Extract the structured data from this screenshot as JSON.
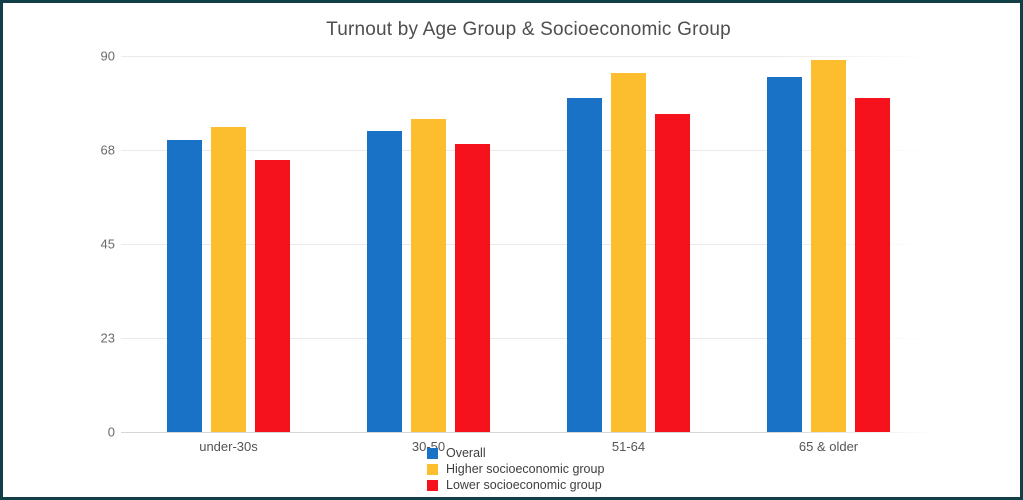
{
  "window": {
    "border_color": "#123e48",
    "background_color": "#ffffff",
    "gridline_color": "#eaeaea",
    "axis_line_color": "#d6d6d6"
  },
  "chart_data": {
    "type": "bar",
    "title": "Turnout by Age Group & Socioeconomic Group",
    "xlabel": "",
    "ylabel": "",
    "categories": [
      "under-30s",
      "30-50",
      "51-64",
      "65 & older"
    ],
    "series": [
      {
        "name": "Overall",
        "color": "#1a72c6",
        "values": [
          70,
          72,
          80,
          85
        ]
      },
      {
        "name": "Higher socioeconomic group",
        "color": "#fcbd2f",
        "values": [
          73,
          75,
          86,
          89
        ]
      },
      {
        "name": "Lower socioeconomic group",
        "color": "#f5121d",
        "values": [
          65,
          69,
          76,
          80
        ]
      }
    ],
    "ylim": [
      0,
      90
    ],
    "yticks": [
      {
        "value": 0,
        "label": "0"
      },
      {
        "value": 22.5,
        "label": "23"
      },
      {
        "value": 45,
        "label": "45"
      },
      {
        "value": 67.5,
        "label": "68"
      },
      {
        "value": 90,
        "label": "90"
      }
    ],
    "grid": true,
    "legend_position": "bottom-left-of-center"
  }
}
